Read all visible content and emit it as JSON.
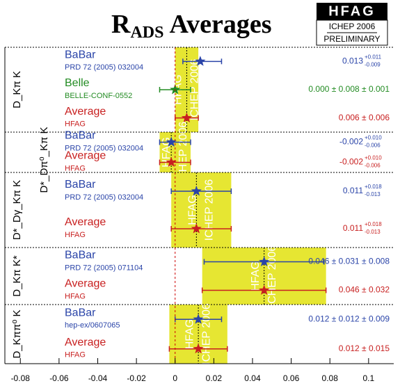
{
  "chart_data": {
    "type": "forest",
    "title": "R",
    "title_sub": "ADS",
    "title_rest": "Averages",
    "logo": {
      "name": "HFAG",
      "event": "ICHEP 2006",
      "status": "PRELIMINARY"
    },
    "watermark": [
      "HFAG",
      "ICHEP 2006"
    ],
    "band_color": "#e6e632",
    "zero_color": "#cc0000",
    "xlim": [
      -0.088,
      0.113
    ],
    "xticks": [
      -0.08,
      -0.06,
      -0.04,
      -0.02,
      0,
      0.02,
      0.04,
      0.06,
      0.08,
      0.1
    ],
    "groups": [
      {
        "label": "D_Kπ K",
        "entries": [
          {
            "name": "BaBar",
            "ref": "PRD 72 (2005) 032004",
            "color": "#2a44a8",
            "value": 0.013,
            "err_plus": 0.011,
            "err_minus": 0.009,
            "label": "0.013",
            "err_plus_label": "+0.011",
            "err_minus_label": "-0.009"
          },
          {
            "name": "Belle",
            "ref": "BELLE-CONF-0552",
            "color": "#228b22",
            "value": 0.0,
            "err": 0.008,
            "label": "0.000 ± 0.008 ± 0.001"
          },
          {
            "name": "Average",
            "ref": "HFAG",
            "color": "#c82020",
            "value": 0.006,
            "err": 0.006,
            "label": "0.006 ± 0.006"
          }
        ]
      },
      {
        "label": "D*_Dπ⁰_Kπ K",
        "entries": [
          {
            "name": "BaBar",
            "ref": "PRD 72 (2005) 032004",
            "color": "#2a44a8",
            "value": -0.002,
            "err_plus": 0.01,
            "err_minus": 0.006,
            "label": "-0.002",
            "err_plus_label": "+0.010",
            "err_minus_label": "-0.006"
          },
          {
            "name": "Average",
            "ref": "HFAG",
            "color": "#c82020",
            "value": -0.002,
            "err_plus": 0.01,
            "err_minus": 0.006,
            "label": "-0.002",
            "err_plus_label": "+0.010",
            "err_minus_label": "-0.006"
          }
        ]
      },
      {
        "label": "D*_Dγ_Kπ K",
        "entries": [
          {
            "name": "BaBar",
            "ref": "PRD 72 (2005) 032004",
            "color": "#2a44a8",
            "value": 0.011,
            "err_plus": 0.018,
            "err_minus": 0.013,
            "label": "0.011",
            "err_plus_label": "+0.018",
            "err_minus_label": "-0.013"
          },
          {
            "name": "Average",
            "ref": "HFAG",
            "color": "#c82020",
            "value": 0.011,
            "err_plus": 0.018,
            "err_minus": 0.013,
            "label": "0.011",
            "err_plus_label": "+0.018",
            "err_minus_label": "-0.013"
          }
        ]
      },
      {
        "label": "D_Kπ K*",
        "entries": [
          {
            "name": "BaBar",
            "ref": "PRD 72 (2005) 071104",
            "color": "#2a44a8",
            "value": 0.046,
            "err": 0.031,
            "label": "0.046 ± 0.031 ± 0.008"
          },
          {
            "name": "Average",
            "ref": "HFAG",
            "color": "#c82020",
            "value": 0.046,
            "err": 0.032,
            "label": "0.046 ± 0.032"
          }
        ]
      },
      {
        "label": "D_Kππ⁰ K",
        "entries": [
          {
            "name": "BaBar",
            "ref": "hep-ex/0607065",
            "color": "#2a44a8",
            "value": 0.012,
            "err": 0.012,
            "label": "0.012 ± 0.012 ± 0.009"
          },
          {
            "name": "Average",
            "ref": "HFAG",
            "color": "#c82020",
            "value": 0.012,
            "err": 0.015,
            "label": "0.012 ± 0.015"
          }
        ]
      }
    ]
  }
}
